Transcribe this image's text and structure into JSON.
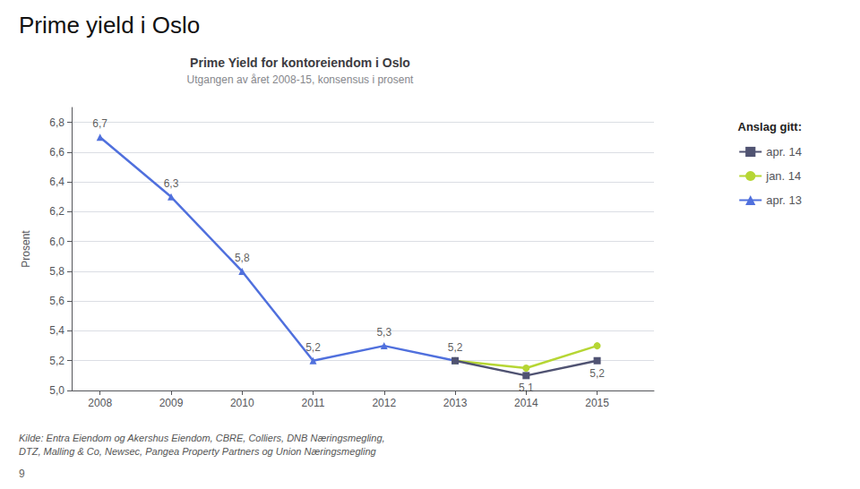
{
  "chart_data": {
    "type": "line",
    "page_title": "Prime yield i Oslo",
    "title": "Prime Yield for kontoreiendom i Oslo",
    "subtitle": "Utgangen av året 2008-15, konsensus i prosent",
    "ylabel": "Prosent",
    "xlim": [
      2007.6,
      2015.8
    ],
    "xticks": [
      2008,
      2009,
      2010,
      2011,
      2012,
      2013,
      2014,
      2015
    ],
    "ylim": [
      5.0,
      6.9
    ],
    "yticks": [
      {
        "value": 5.0,
        "label": "5,0"
      },
      {
        "value": 5.2,
        "label": "5,2"
      },
      {
        "value": 5.4,
        "label": "5,4"
      },
      {
        "value": 5.6,
        "label": "5,6"
      },
      {
        "value": 5.8,
        "label": "5,8"
      },
      {
        "value": 6.0,
        "label": "6,0"
      },
      {
        "value": 6.2,
        "label": "6,2"
      },
      {
        "value": 6.4,
        "label": "6,4"
      },
      {
        "value": 6.6,
        "label": "6,6"
      },
      {
        "value": 6.8,
        "label": "6,8"
      }
    ],
    "grid": true,
    "legend": "right",
    "legend_title": "Anslag gitt:",
    "series": [
      {
        "name": "apr. 13",
        "marker": "triangle",
        "x": [
          2008,
          2009,
          2010,
          2011,
          2012,
          2013
        ],
        "values": [
          6.7,
          6.3,
          5.8,
          5.2,
          5.3,
          5.2
        ]
      },
      {
        "name": "jan. 14",
        "marker": "circle",
        "x": [
          2013,
          2014,
          2015
        ],
        "values": [
          5.2,
          5.15,
          5.3
        ]
      },
      {
        "name": "apr. 14",
        "marker": "square",
        "x": [
          2013,
          2014,
          2015
        ],
        "values": [
          5.2,
          5.1,
          5.2
        ]
      }
    ],
    "annotations": [
      {
        "x": 2008,
        "y": 6.7,
        "text": "6,7"
      },
      {
        "x": 2009,
        "y": 6.3,
        "text": "6,3"
      },
      {
        "x": 2010,
        "y": 5.8,
        "text": "5,8"
      },
      {
        "x": 2011,
        "y": 5.2,
        "text": "5,2"
      },
      {
        "x": 2012,
        "y": 5.3,
        "text": "5,3"
      },
      {
        "x": 2013,
        "y": 5.2,
        "text": "5,2"
      },
      {
        "x": 2014,
        "y": 5.1,
        "text": "5,1"
      },
      {
        "x": 2015,
        "y": 5.2,
        "text": "5,2"
      }
    ],
    "source": "Kilde: Entra Eiendom og Akershus Eiendom, CBRE, Colliers, DNB Næringsmegling,\nDTZ, Malling & Co, Newsec, Pangea Property Partners og Union Næringsmegling",
    "page_number": "9"
  }
}
